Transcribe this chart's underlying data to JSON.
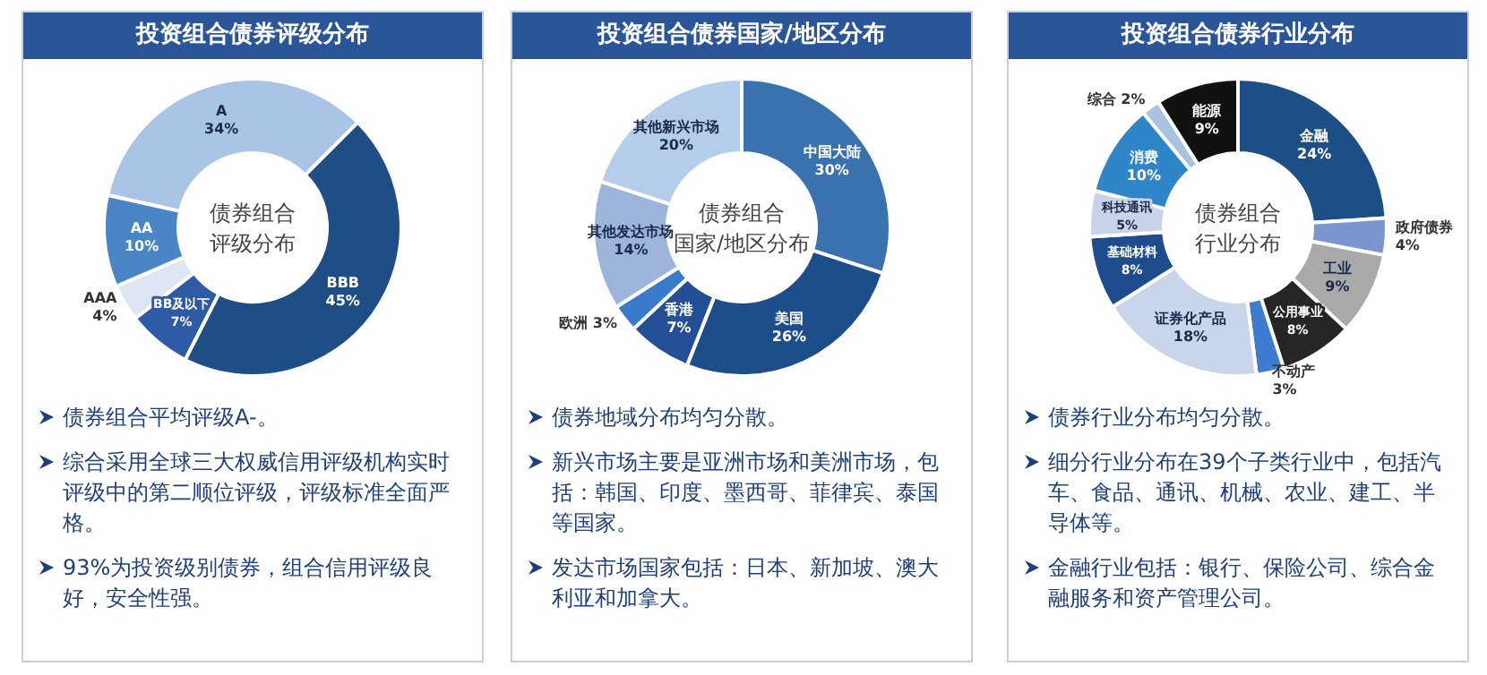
{
  "chart_data": [
    {
      "type": "donut",
      "title": "投资组合债券评级分布",
      "categories": [
        "BBB",
        "BB及以下",
        "AAA",
        "AA",
        "A"
      ],
      "values": [
        45,
        7,
        4,
        10,
        34
      ],
      "value_labels": [
        "45%",
        "7%",
        "4%",
        "10%",
        "34%"
      ],
      "colors": [
        "#1f4e86",
        "#2f5aa6",
        "#dde6f2",
        "#4a86c5",
        "#a9c4e4"
      ],
      "annotations": [
        "债券组合评级分布",
        "债券组合平均评级A-。",
        "综合采用全球三大权威信用评级机构实时评级中的第二顺位评级，评级标准全面严格。",
        "93%为投资级别债券，组合信用评级良好，安全性强。"
      ]
    },
    {
      "type": "donut",
      "title": "投资组合债券国家/地区分布",
      "categories": [
        "中国大陆",
        "美国",
        "香港",
        "欧洲",
        "其他发达市场",
        "其他新兴市场"
      ],
      "values": [
        30,
        26,
        7,
        3,
        14,
        20
      ],
      "value_labels": [
        "30%",
        "26%",
        "7%",
        "3%",
        "14%",
        "20%"
      ],
      "colors": [
        "#3a72b0",
        "#1e4d8c",
        "#244f96",
        "#3a7acb",
        "#9db5dd",
        "#b4cdea"
      ],
      "annotations": [
        "债券组合国家/地区分布",
        "债券地域分布均匀分散。",
        "新兴市场主要是亚洲市场和美洲市场，包括：韩国、印度、墨西哥、菲律宾、泰国等国家。",
        "发达市场国家包括：日本、新加坡、澳大利亚和加拿大。"
      ]
    },
    {
      "type": "donut",
      "title": "投资组合债券行业分布",
      "categories": [
        "金融",
        "政府债券",
        "工业",
        "公用事业",
        "不动产",
        "证券化产品",
        "基础材料",
        "科技通讯",
        "消费",
        "综合",
        "能源"
      ],
      "values": [
        24,
        4,
        9,
        8,
        3,
        18,
        8,
        5,
        10,
        2,
        9
      ],
      "value_labels": [
        "24%",
        "4%",
        "9%",
        "8%",
        "3%",
        "18%",
        "8%",
        "5%",
        "10%",
        "2%",
        "9%"
      ],
      "colors": [
        "#1d4f86",
        "#7b96cf",
        "#a9a9a9",
        "#262626",
        "#3f7bd0",
        "#c9d5ea",
        "#1f4c8f",
        "#c8d3e8",
        "#2e86c8",
        "#a9c2e0",
        "#111111"
      ],
      "annotations": [
        "债券组合行业分布",
        "债券行业分布均匀分散。",
        "细分行业分布在39个子类行业中，包括汽车、食品、通讯、机械、农业、建工、半导体等。",
        "金融行业包括：银行、保险公司、综合金融服务和资产管理公司。"
      ]
    }
  ]
}
